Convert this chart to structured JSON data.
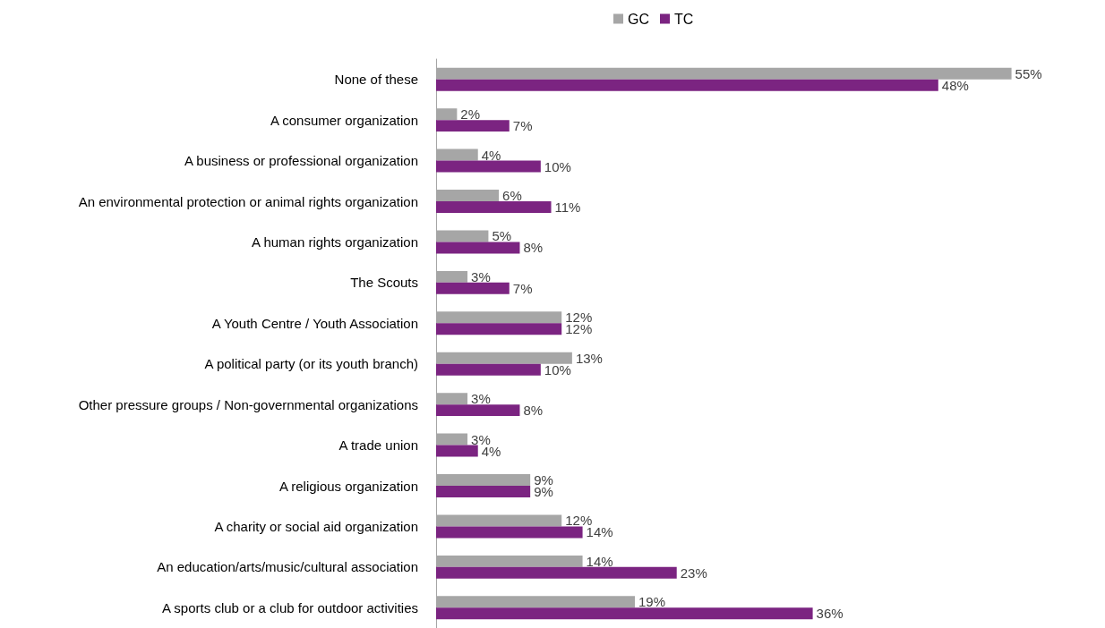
{
  "chart_data": {
    "type": "bar",
    "orientation": "horizontal",
    "legend": "top",
    "categories": [
      "None of these",
      "A consumer organization",
      "A business or professional organization",
      "An environmental protection or animal rights organization",
      "A human rights organization",
      "The Scouts",
      "A Youth Centre / Youth Association",
      "A political party (or its youth branch)",
      "Other pressure groups / Non-governmental organizations",
      "A trade union",
      "A religious organization",
      "A charity or social aid organization",
      "An education/arts/music/cultural association",
      "A sports club or a club for outdoor activities"
    ],
    "series": [
      {
        "name": "GC",
        "color": "#a6a6a6",
        "values": [
          55,
          2,
          4,
          6,
          5,
          3,
          12,
          13,
          3,
          3,
          9,
          12,
          14,
          19
        ],
        "value_labels": [
          "55%",
          "2%",
          "4%",
          "6%",
          "5%",
          "3%",
          "12%",
          "13%",
          "3%",
          "3%",
          "9%",
          "12%",
          "14%",
          "19%"
        ]
      },
      {
        "name": "TC",
        "color": "#7b2481",
        "values": [
          48,
          7,
          10,
          11,
          8,
          7,
          12,
          10,
          8,
          4,
          9,
          14,
          23,
          36
        ],
        "value_labels": [
          "48%",
          "7%",
          "10%",
          "11%",
          "8%",
          "7%",
          "12%",
          "10%",
          "8%",
          "4%",
          "9%",
          "14%",
          "23%",
          "36%"
        ]
      }
    ]
  }
}
